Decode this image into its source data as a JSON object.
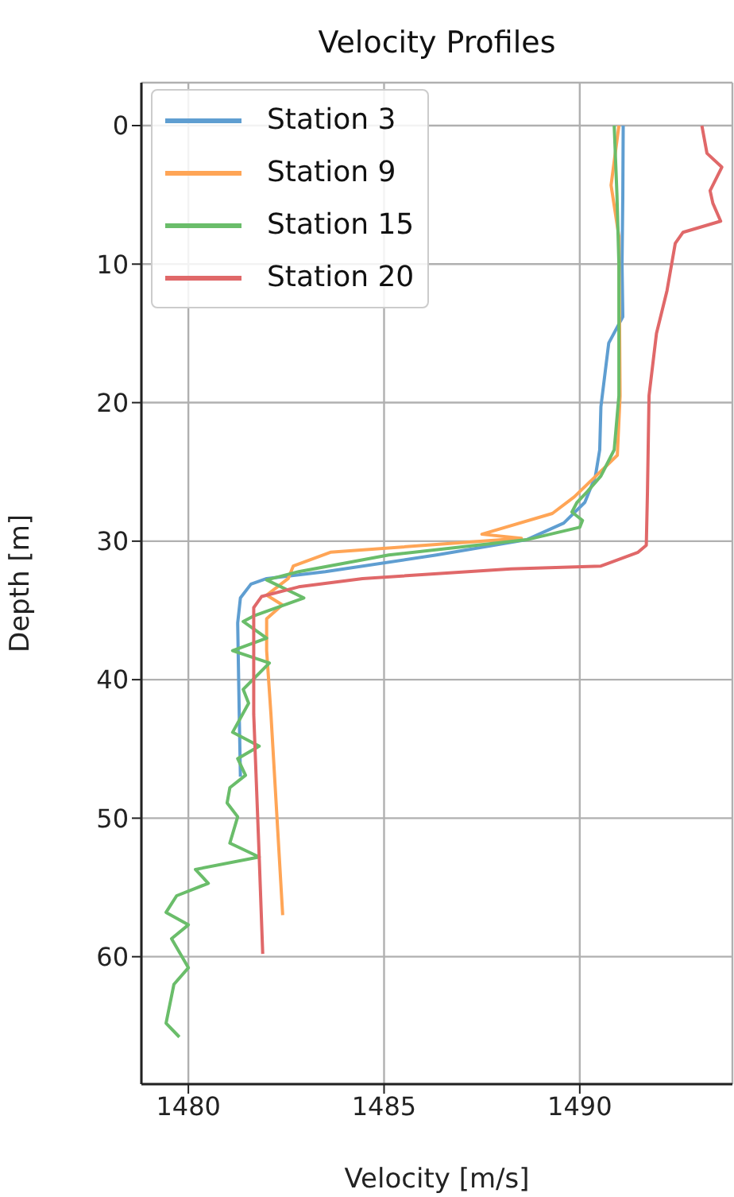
{
  "chart_data": {
    "type": "line",
    "title": "Velocity Profiles",
    "xlabel": "Velocity [m/s]",
    "ylabel": "Depth [m]",
    "xlim": [
      1478.8,
      1493.9
    ],
    "xticks": [
      1480,
      1485,
      1490
    ],
    "ylim": [
      69.2,
      -3.1
    ],
    "yticks": [
      0,
      10,
      20,
      30,
      40,
      50,
      60
    ],
    "grid": true,
    "legend": "top left",
    "line_style": "solid",
    "series": [
      {
        "name": "Station 3",
        "color": "#5f9ed1",
        "x": [
          1491.11,
          1491.1,
          1491.08,
          1491.1,
          1490.74,
          1490.54,
          1490.51,
          1490.4,
          1490.13,
          1489.59,
          1488.64,
          1486.34,
          1483.5,
          1482.0,
          1481.6,
          1481.33,
          1481.26,
          1481.3,
          1481.33
        ],
        "values": [
          0,
          5,
          10,
          13.8,
          15.7,
          20.3,
          23.4,
          25.3,
          27.2,
          28.7,
          29.9,
          31.0,
          32.2,
          32.7,
          33.1,
          34.1,
          35.9,
          42.5,
          47.0
        ]
      },
      {
        "name": "Station 9",
        "color": "#ffa556",
        "x": [
          1491.0,
          1490.8,
          1491.0,
          1491.03,
          1490.96,
          1489.86,
          1489.3,
          1487.5,
          1488.51,
          1483.63,
          1482.68,
          1482.55,
          1482.0,
          1482.4,
          1482.0,
          1482.0,
          1482.11,
          1482.41
        ],
        "values": [
          0,
          4.3,
          8,
          19.5,
          23.8,
          26.8,
          28.0,
          29.5,
          29.8,
          30.8,
          31.8,
          32.7,
          33.9,
          34.6,
          35.6,
          37.9,
          42.5,
          57.0
        ]
      },
      {
        "name": "Station 15",
        "color": "#6abd6a",
        "x": [
          1490.88,
          1490.95,
          1491.0,
          1491.0,
          1491.0,
          1490.88,
          1490.54,
          1490.2,
          1489.93,
          1489.8,
          1490.07,
          1490.0,
          1488.64,
          1485.12,
          1482.82,
          1482.0,
          1482.95,
          1481.67,
          1481.4,
          1482.0,
          1481.13,
          1482.07,
          1481.4,
          1481.54,
          1481.13,
          1481.81,
          1481.26,
          1481.46,
          1481.06,
          1480.99,
          1481.26,
          1481.06,
          1481.81,
          1480.18,
          1480.51,
          1479.7,
          1479.43,
          1480.0,
          1479.57,
          1480.0,
          1479.63,
          1479.43,
          1479.77
        ],
        "values": [
          0,
          5,
          10,
          15,
          19.5,
          23.4,
          25.3,
          26.4,
          27.2,
          27.9,
          28.5,
          29.0,
          29.9,
          31.0,
          32.2,
          32.8,
          34.1,
          35.4,
          35.8,
          37.0,
          37.9,
          38.8,
          40.7,
          41.7,
          43.8,
          44.8,
          45.7,
          46.9,
          47.8,
          48.9,
          49.9,
          51.8,
          52.8,
          53.7,
          54.7,
          55.6,
          56.8,
          57.7,
          58.7,
          60.8,
          62.0,
          64.8,
          65.8
        ]
      },
      {
        "name": "Station 20",
        "color": "#e06869",
        "x": [
          1493.12,
          1493.25,
          1493.63,
          1493.33,
          1493.4,
          1493.6,
          1492.64,
          1492.44,
          1492.23,
          1491.96,
          1491.77,
          1491.73,
          1491.7,
          1491.49,
          1490.54,
          1488.24,
          1484.45,
          1482.82,
          1481.87,
          1481.67,
          1481.67,
          1481.81,
          1481.9
        ],
        "values": [
          0,
          2,
          3,
          4.7,
          5.6,
          6.9,
          7.7,
          8.5,
          11.9,
          15.0,
          19.5,
          26.4,
          30.3,
          30.8,
          31.8,
          32.0,
          32.7,
          33.3,
          34.0,
          34.8,
          42.5,
          52.8,
          59.8
        ]
      }
    ]
  }
}
